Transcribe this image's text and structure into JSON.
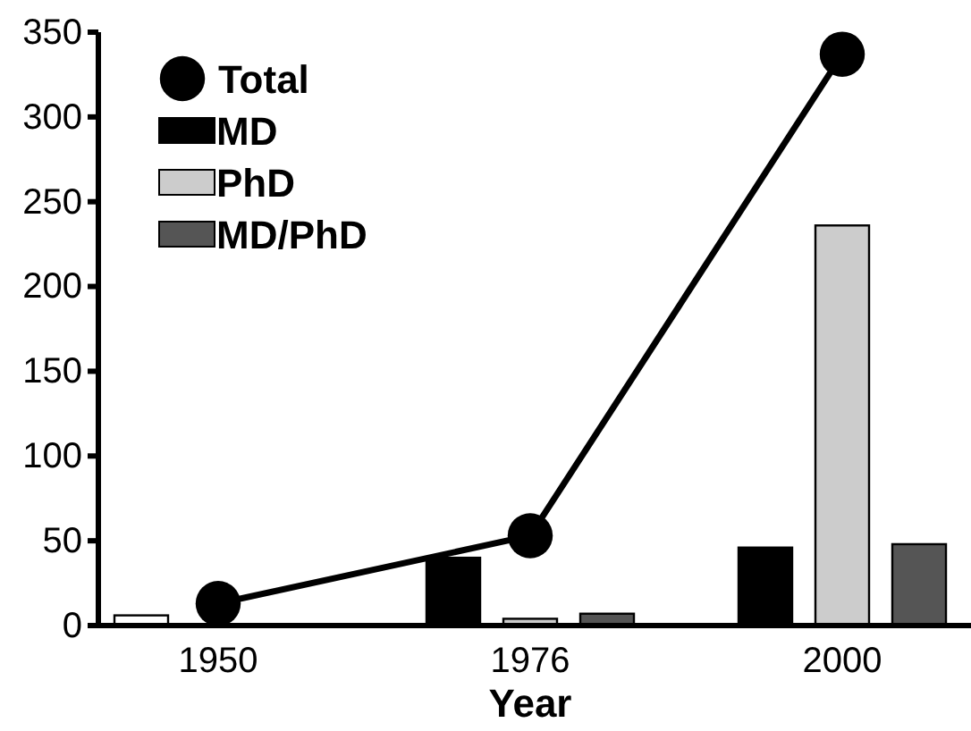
{
  "chart_data": {
    "type": "bar",
    "xlabel": "Year",
    "categories": [
      "1950",
      "1976",
      "2000"
    ],
    "series": [
      {
        "name": "Total",
        "type": "line",
        "color": "#000000",
        "values": [
          13,
          53,
          337
        ]
      },
      {
        "name": "MD",
        "color": "#000000",
        "colors": [
          "#ffffff",
          "#000000",
          "#000000"
        ],
        "values": [
          6,
          40,
          46
        ]
      },
      {
        "name": "PhD",
        "color": "#cccccc",
        "values": [
          null,
          4,
          236
        ]
      },
      {
        "name": "MD/PhD",
        "color": "#555555",
        "values": [
          null,
          7,
          48
        ]
      }
    ],
    "ylim": [
      0,
      350
    ],
    "yticks": [
      0,
      50,
      100,
      150,
      200,
      250,
      300,
      350
    ],
    "grid": false,
    "legend": "top left",
    "marker": "circle"
  }
}
